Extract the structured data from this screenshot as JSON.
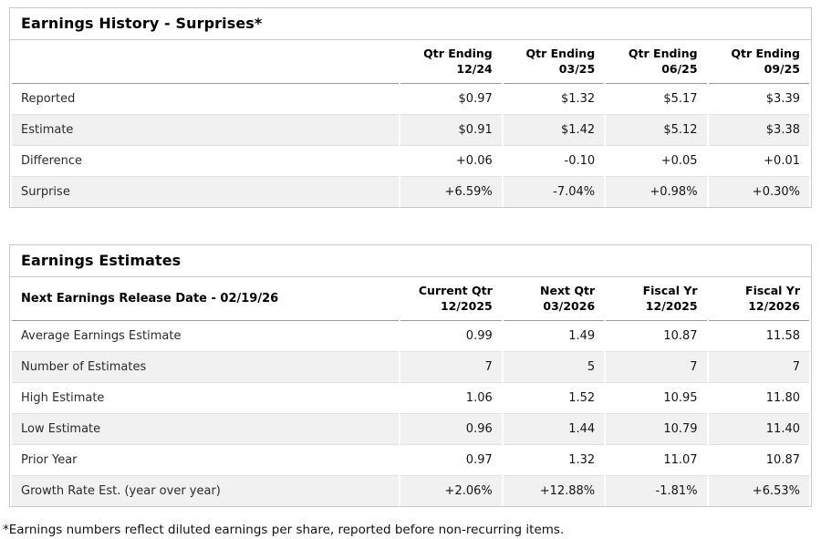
{
  "colors": {
    "positive": "#0d7d64",
    "negative": "#c3002f"
  },
  "surprises_table": {
    "title": "Earnings History - Surprises*",
    "columns": [
      {
        "line1": "Qtr Ending",
        "line2": "12/24"
      },
      {
        "line1": "Qtr Ending",
        "line2": "03/25"
      },
      {
        "line1": "Qtr Ending",
        "line2": "06/25"
      },
      {
        "line1": "Qtr Ending",
        "line2": "09/25"
      }
    ],
    "rows": [
      {
        "label": "Reported",
        "values": [
          "$0.97",
          "$1.32",
          "$5.17",
          "$3.39"
        ]
      },
      {
        "label": "Estimate",
        "values": [
          "$0.91",
          "$1.42",
          "$5.12",
          "$3.38"
        ]
      },
      {
        "label": "Difference",
        "values": [
          "+0.06",
          "-0.10",
          "+0.05",
          "+0.01"
        ],
        "tones": [
          "pos",
          "neg",
          "pos",
          "pos"
        ]
      },
      {
        "label": "Surprise",
        "values": [
          "+6.59%",
          "-7.04%",
          "+0.98%",
          "+0.30%"
        ],
        "tones": [
          "pos",
          "neg",
          "pos",
          "pos"
        ]
      }
    ]
  },
  "estimates_table": {
    "title": "Earnings Estimates",
    "header_label": "Next Earnings Release Date - 02/19/26",
    "columns": [
      {
        "line1": "Current Qtr",
        "line2": "12/2025"
      },
      {
        "line1": "Next Qtr",
        "line2": "03/2026"
      },
      {
        "line1": "Fiscal Yr",
        "line2": "12/2025"
      },
      {
        "line1": "Fiscal Yr",
        "line2": "12/2026"
      }
    ],
    "rows": [
      {
        "label": "Average Earnings Estimate",
        "values": [
          "0.99",
          "1.49",
          "10.87",
          "11.58"
        ]
      },
      {
        "label": "Number of Estimates",
        "values": [
          "7",
          "5",
          "7",
          "7"
        ]
      },
      {
        "label": "High Estimate",
        "values": [
          "1.06",
          "1.52",
          "10.95",
          "11.80"
        ]
      },
      {
        "label": "Low Estimate",
        "values": [
          "0.96",
          "1.44",
          "10.79",
          "11.40"
        ]
      },
      {
        "label": "Prior Year",
        "values": [
          "0.97",
          "1.32",
          "11.07",
          "10.87"
        ]
      },
      {
        "label": "Growth Rate Est. (year over year)",
        "values": [
          "+2.06%",
          "+12.88%",
          "-1.81%",
          "+6.53%"
        ],
        "tones": [
          "pos",
          "pos",
          "neg",
          "pos"
        ]
      }
    ]
  },
  "footnote": "*Earnings numbers reflect diluted earnings per share, reported before non-recurring items."
}
